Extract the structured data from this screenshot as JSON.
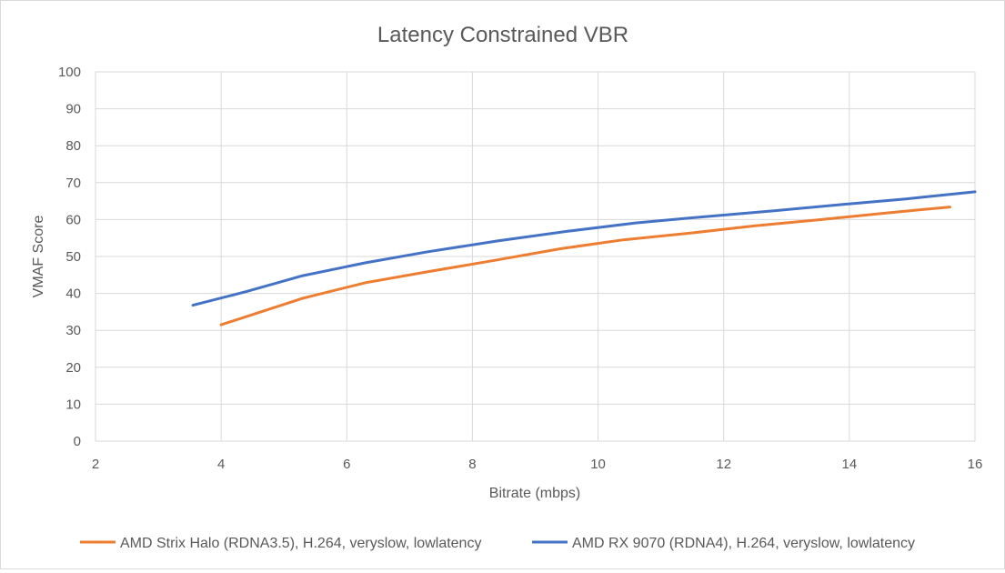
{
  "chart_data": {
    "type": "line",
    "title": "Latency Constrained VBR",
    "xlabel": "Bitrate (mbps)",
    "ylabel": "VMAF Score",
    "xlim": [
      2,
      16
    ],
    "ylim": [
      0,
      100
    ],
    "xticks": [
      2,
      4,
      6,
      8,
      10,
      12,
      14,
      16
    ],
    "yticks": [
      0,
      10,
      20,
      30,
      40,
      50,
      60,
      70,
      80,
      90,
      100
    ],
    "grid": "vertical-and-horizontal",
    "legend_position": "bottom",
    "series": [
      {
        "name": "AMD Strix Halo (RDNA3.5), H.264, veryslow, lowlatency",
        "color": "#ED7D31",
        "points": [
          {
            "x": 4.0,
            "y": 31.5
          },
          {
            "x": 5.3,
            "y": 38.7
          },
          {
            "x": 6.3,
            "y": 42.9
          },
          {
            "x": 7.3,
            "y": 45.9
          },
          {
            "x": 8.4,
            "y": 49.1
          },
          {
            "x": 9.4,
            "y": 52.1
          },
          {
            "x": 10.4,
            "y": 54.5
          },
          {
            "x": 11.4,
            "y": 56.2
          },
          {
            "x": 12.5,
            "y": 58.3
          },
          {
            "x": 13.5,
            "y": 59.9
          },
          {
            "x": 14.6,
            "y": 61.8
          },
          {
            "x": 15.6,
            "y": 63.4
          }
        ]
      },
      {
        "name": "AMD RX 9070 (RDNA4), H.264, veryslow, lowlatency",
        "color": "#4472C4",
        "points": [
          {
            "x": 3.55,
            "y": 36.8
          },
          {
            "x": 4.4,
            "y": 40.5
          },
          {
            "x": 5.3,
            "y": 44.8
          },
          {
            "x": 6.3,
            "y": 48.3
          },
          {
            "x": 7.3,
            "y": 51.3
          },
          {
            "x": 8.4,
            "y": 54.2
          },
          {
            "x": 9.5,
            "y": 56.8
          },
          {
            "x": 10.6,
            "y": 59.1
          },
          {
            "x": 11.7,
            "y": 60.8
          },
          {
            "x": 12.8,
            "y": 62.4
          },
          {
            "x": 13.9,
            "y": 64.1
          },
          {
            "x": 14.9,
            "y": 65.6
          },
          {
            "x": 16.0,
            "y": 67.5
          }
        ]
      }
    ]
  }
}
